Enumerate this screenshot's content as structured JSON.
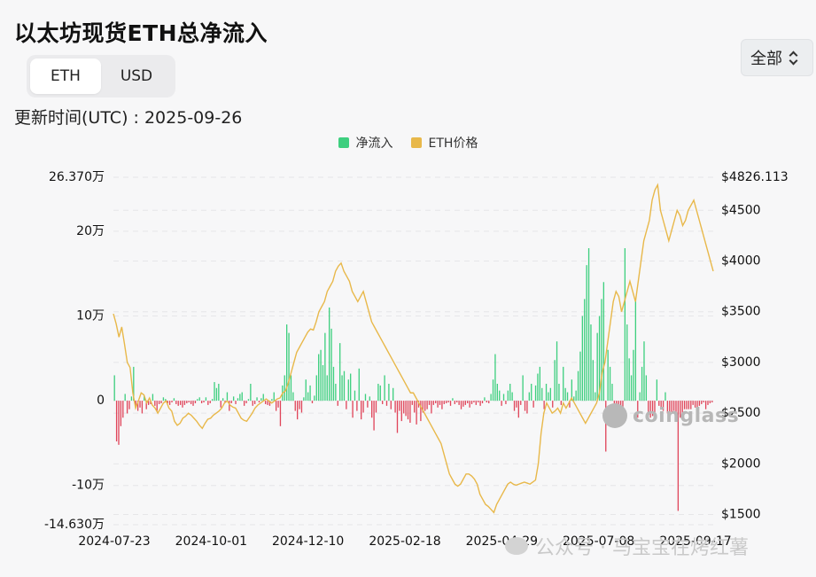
{
  "title": "以太坊现货ETH总净流入",
  "unit_toggle": {
    "options": [
      "ETH",
      "USD"
    ],
    "selected": "ETH"
  },
  "updated_text": "更新时间(UTC) : 2025-09-26",
  "range_select": {
    "value": "全部",
    "icon": "chevron-updown-icon"
  },
  "watermark_text": "公众号 · 马宝宝在烤红薯",
  "logo_text": "coinglass",
  "chart_data": {
    "type": "bar+line",
    "legend": [
      {
        "name": "净流入",
        "color": "#3ecf7f"
      },
      {
        "name": "ETH价格",
        "color": "#e8b84a"
      }
    ],
    "x_labels": [
      "2024-07-23",
      "2024-10-01",
      "2024-12-10",
      "2025-02-18",
      "2025-04-29",
      "2025-07-08",
      "2025-09-17"
    ],
    "y_left": {
      "ticks": [
        -100000,
        0,
        100000,
        200000
      ],
      "tick_labels": [
        "-10万",
        "0",
        "10万",
        "20万"
      ],
      "min": -146300,
      "max": 263700,
      "min_label": "-14.630万",
      "max_label": "26.370万"
    },
    "y_right": {
      "ticks": [
        1500,
        2000,
        2500,
        3000,
        3500,
        4000,
        4500
      ],
      "tick_labels": [
        "$1500",
        "$2000",
        "$2500",
        "$3000",
        "$3500",
        "$4000",
        "$4500"
      ],
      "min": 1400,
      "max": 4826.113,
      "max_label": "$4826.113"
    },
    "colors": {
      "inflow": "#3ecf7f",
      "outflow": "#e0455a",
      "price": "#e8b84a",
      "grid": "#e6e6e8"
    },
    "flows_start": "2024-07-23",
    "flows": [
      30000,
      -48000,
      -52000,
      -30000,
      -20000,
      8000,
      -15000,
      -10000,
      5000,
      40000,
      -8000,
      -12000,
      -8000,
      -15000,
      6000,
      -10000,
      -5000,
      -4000,
      8000,
      -6000,
      -12000,
      -4000,
      -3000,
      4000,
      2000,
      -3000,
      -5000,
      -2000,
      3000,
      -4000,
      -6000,
      -5000,
      -8000,
      -5000,
      -3000,
      -2000,
      -4000,
      -6000,
      -3000,
      2000,
      4000,
      -3000,
      -2000,
      4000,
      -5000,
      -3000,
      2000,
      22000,
      15000,
      20000,
      -8000,
      3000,
      -2000,
      10000,
      -12000,
      -3000,
      5000,
      -4000,
      3000,
      8000,
      10000,
      -6000,
      -3000,
      2000,
      20000,
      -6000,
      -4000,
      4000,
      -2000,
      3000,
      8000,
      -4000,
      -5000,
      -6000,
      2000,
      10000,
      -12000,
      -8000,
      -30000,
      18000,
      30000,
      90000,
      80000,
      30000,
      10000,
      -12000,
      -22000,
      -10000,
      -14000,
      4000,
      25000,
      10000,
      18000,
      -3000,
      6000,
      30000,
      55000,
      60000,
      42000,
      80000,
      30000,
      110000,
      85000,
      40000,
      20000,
      -6000,
      68000,
      30000,
      35000,
      -10000,
      25000,
      32000,
      -20000,
      12000,
      -12000,
      38000,
      -22000,
      -14000,
      8000,
      -8000,
      5000,
      -20000,
      -35000,
      -14000,
      20000,
      18000,
      -4000,
      30000,
      -6000,
      20000,
      -10000,
      15000,
      -14000,
      -38000,
      -12000,
      -24000,
      -15000,
      -18000,
      -22000,
      -26000,
      -5000,
      -14000,
      -28000,
      -8000,
      -24000,
      -14000,
      -12000,
      -10000,
      -5000,
      -15000,
      -5000,
      -3000,
      -8000,
      -5000,
      -10000,
      -4000,
      -3000,
      -2000,
      -6000,
      3000,
      -4000,
      -2000,
      -5000,
      -10000,
      -7000,
      -5000,
      -3000,
      -8000,
      -4000,
      -2000,
      -5000,
      -2000,
      -6000,
      -3000,
      4000,
      -2000,
      -3000,
      8000,
      25000,
      55000,
      20000,
      12000,
      -6000,
      8000,
      -4000,
      12000,
      20000,
      10000,
      -12000,
      -8000,
      -20000,
      -5000,
      30000,
      -12000,
      -15000,
      10000,
      20000,
      -8000,
      18000,
      32000,
      40000,
      15000,
      -10000,
      20000,
      10000,
      15000,
      -8000,
      48000,
      70000,
      20000,
      -5000,
      40000,
      15000,
      10000,
      -8000,
      25000,
      5000,
      12000,
      35000,
      58000,
      100000,
      120000,
      160000,
      180000,
      90000,
      48000,
      10000,
      80000,
      100000,
      120000,
      140000,
      -60000,
      60000,
      40000,
      20000,
      -8000,
      -12000,
      -10000,
      -10000,
      -10000,
      180000,
      90000,
      50000,
      30000,
      60000,
      120000,
      -20000,
      10000,
      40000,
      70000,
      30000,
      -15000,
      -20000,
      -18000,
      -14000,
      25000,
      -6000,
      -10000,
      -12000,
      10000,
      -15000,
      -20000,
      -15000,
      -12000,
      -18000,
      -130000,
      -20000,
      -15000,
      -10000,
      -10000,
      -10000,
      -10000,
      -5000,
      -8000,
      -12000,
      -6000,
      -4000,
      -2000,
      -10000,
      -5000,
      -3000,
      -2000
    ],
    "price_daily": [
      3480,
      3380,
      3250,
      3350,
      3180,
      3000,
      2950,
      2700,
      2550,
      2620,
      2700,
      2680,
      2600,
      2650,
      2580,
      2550,
      2500,
      2550,
      2600,
      2620,
      2550,
      2520,
      2420,
      2380,
      2400,
      2450,
      2470,
      2500,
      2480,
      2450,
      2420,
      2380,
      2350,
      2400,
      2440,
      2450,
      2480,
      2500,
      2520,
      2550,
      2600,
      2620,
      2580,
      2560,
      2550,
      2500,
      2450,
      2430,
      2420,
      2460,
      2500,
      2550,
      2580,
      2600,
      2620,
      2640,
      2620,
      2600,
      2620,
      2640,
      2650,
      2700,
      2720,
      2800,
      2900,
      3000,
      3100,
      3150,
      3200,
      3250,
      3300,
      3330,
      3320,
      3400,
      3500,
      3550,
      3600,
      3700,
      3750,
      3800,
      3900,
      3950,
      3980,
      3900,
      3850,
      3800,
      3700,
      3650,
      3600,
      3650,
      3700,
      3600,
      3500,
      3400,
      3350,
      3300,
      3250,
      3200,
      3150,
      3100,
      3050,
      3000,
      2950,
      2900,
      2850,
      2800,
      2750,
      2700,
      2700,
      2650,
      2600,
      2550,
      2500,
      2450,
      2400,
      2350,
      2300,
      2250,
      2200,
      2100,
      2000,
      1900,
      1850,
      1800,
      1780,
      1800,
      1850,
      1900,
      1900,
      1880,
      1850,
      1800,
      1700,
      1650,
      1600,
      1580,
      1550,
      1520,
      1600,
      1650,
      1700,
      1750,
      1800,
      1820,
      1800,
      1790,
      1800,
      1810,
      1820,
      1810,
      1800,
      1820,
      1840,
      2000,
      2300,
      2500,
      2600,
      2550,
      2500,
      2520,
      2550,
      2500,
      2600,
      2550,
      2600,
      2650,
      2600,
      2550,
      2500,
      2450,
      2400,
      2450,
      2500,
      2550,
      2600,
      2700,
      2900,
      3000,
      3200,
      3400,
      3600,
      3700,
      3650,
      3500,
      3600,
      3700,
      3800,
      3700,
      3600,
      3800,
      4000,
      4200,
      4300,
      4400,
      4600,
      4700,
      4750,
      4500,
      4400,
      4300,
      4200,
      4300,
      4400,
      4500,
      4450,
      4350,
      4400,
      4500,
      4550,
      4600,
      4500,
      4400,
      4300,
      4200,
      4100,
      4000,
      3900
    ]
  }
}
